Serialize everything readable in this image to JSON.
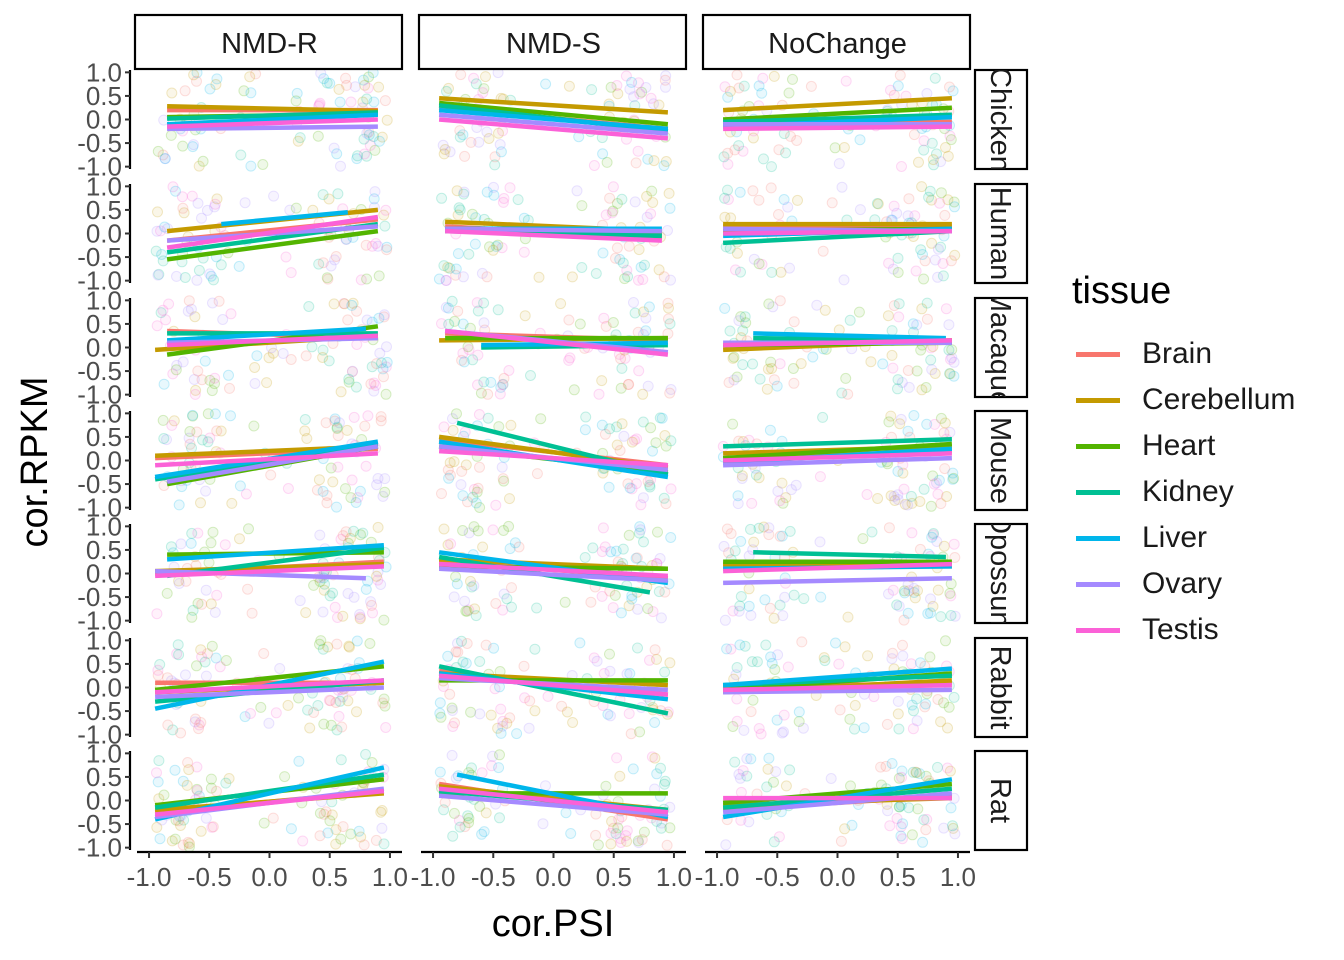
{
  "chart_data": {
    "type": "scatter",
    "facet_columns": [
      "NMD-R",
      "NMD-S",
      "NoChange"
    ],
    "facet_rows": [
      "Chicken",
      "Human",
      "Macaque",
      "Mouse",
      "Opossum",
      "Rabbit",
      "Rat"
    ],
    "xlabel": "cor.PSI",
    "ylabel": "cor.RPKM",
    "xlim": [
      -1.0,
      1.0
    ],
    "ylim": [
      -1.0,
      1.0
    ],
    "x_ticks": [
      "-1.0",
      "-0.5",
      "0.0",
      "0.5",
      "1.0"
    ],
    "y_ticks": [
      "-1.0",
      "-0.5",
      "0.0",
      "0.5",
      "1.0"
    ],
    "grid": false,
    "legend": {
      "title": "tissue",
      "position": "right",
      "entries": [
        "Brain",
        "Cerebellum",
        "Heart",
        "Kidney",
        "Liver",
        "Ovary",
        "Testis"
      ]
    },
    "colors": {
      "Brain": "#F8766D",
      "Cerebellum": "#C49A00",
      "Heart": "#53B400",
      "Kidney": "#00C094",
      "Liver": "#00B6EB",
      "Ovary": "#A58AFF",
      "Testis": "#FB61D7"
    },
    "trend_lines": {
      "Chicken": {
        "NMD-R": {
          "Brain": [
            -0.85,
            0.2,
            0.9,
            0.2
          ],
          "Cerebellum": [
            -0.85,
            0.28,
            0.9,
            0.18
          ],
          "Heart": [
            -0.85,
            0.05,
            0.9,
            0.12
          ],
          "Kidney": [
            -0.85,
            0.02,
            0.9,
            0.15
          ],
          "Liver": [
            -0.85,
            -0.1,
            0.9,
            0.1
          ],
          "Ovary": [
            -0.85,
            -0.2,
            0.9,
            -0.15
          ],
          "Testis": [
            -0.85,
            -0.15,
            0.9,
            0.0
          ]
        },
        "NMD-S": {
          "Brain": [
            -0.95,
            0.25,
            0.95,
            -0.2
          ],
          "Cerebellum": [
            -0.95,
            0.45,
            0.95,
            0.15
          ],
          "Heart": [
            -0.95,
            0.35,
            0.95,
            -0.1
          ],
          "Kidney": [
            -0.95,
            0.3,
            0.95,
            -0.25
          ],
          "Liver": [
            -0.95,
            0.2,
            0.95,
            -0.2
          ],
          "Ovary": [
            -0.95,
            0.1,
            0.95,
            -0.3
          ],
          "Testis": [
            -0.95,
            0.0,
            0.95,
            -0.4
          ]
        },
        "NoChange": {
          "Brain": [
            -0.95,
            -0.1,
            0.95,
            -0.05
          ],
          "Cerebellum": [
            -0.95,
            0.2,
            0.95,
            0.45
          ],
          "Heart": [
            -0.95,
            0.0,
            0.95,
            0.25
          ],
          "Kidney": [
            -0.95,
            -0.05,
            0.95,
            0.1
          ],
          "Liver": [
            -0.95,
            -0.15,
            0.95,
            0.05
          ],
          "Ovary": [
            -0.95,
            -0.1,
            0.95,
            -0.1
          ],
          "Testis": [
            -0.95,
            -0.2,
            0.95,
            -0.15
          ]
        }
      },
      "Human": {
        "NMD-R": {
          "Brain": [
            -0.85,
            -0.15,
            0.9,
            0.3
          ],
          "Cerebellum": [
            -0.85,
            0.05,
            0.9,
            0.5
          ],
          "Heart": [
            -0.85,
            -0.55,
            0.9,
            0.05
          ],
          "Kidney": [
            -0.85,
            -0.4,
            0.9,
            0.2
          ],
          "Liver": [
            -0.4,
            0.2,
            0.65,
            0.45
          ],
          "Ovary": [
            -0.85,
            -0.15,
            0.9,
            0.15
          ],
          "Testis": [
            -0.85,
            -0.3,
            0.9,
            0.35
          ]
        },
        "NMD-S": {
          "Brain": [
            -0.9,
            0.15,
            0.9,
            -0.1
          ],
          "Cerebellum": [
            -0.9,
            0.25,
            0.9,
            0.05
          ],
          "Heart": [
            -0.9,
            0.1,
            0.9,
            0.0
          ],
          "Kidney": [
            -0.9,
            0.05,
            0.9,
            -0.05
          ],
          "Liver": [
            -0.9,
            0.1,
            0.9,
            0.1
          ],
          "Ovary": [
            -0.9,
            0.1,
            0.9,
            0.05
          ],
          "Testis": [
            -0.9,
            0.05,
            0.9,
            -0.15
          ]
        },
        "NoChange": {
          "Brain": [
            -0.95,
            0.15,
            0.95,
            0.15
          ],
          "Cerebellum": [
            -0.95,
            0.2,
            0.95,
            0.2
          ],
          "Heart": [
            -0.95,
            0.05,
            0.95,
            0.1
          ],
          "Kidney": [
            -0.95,
            -0.2,
            0.95,
            0.05
          ],
          "Liver": [
            -0.95,
            -0.05,
            0.95,
            0.1
          ],
          "Ovary": [
            -0.95,
            0.1,
            0.95,
            0.05
          ],
          "Testis": [
            -0.95,
            0.0,
            0.95,
            0.05
          ]
        }
      },
      "Macaque": {
        "NMD-R": {
          "Brain": [
            -0.85,
            0.35,
            0.9,
            0.2
          ],
          "Cerebellum": [
            -0.95,
            -0.05,
            0.9,
            0.25
          ],
          "Heart": [
            -0.85,
            -0.15,
            0.9,
            0.45
          ],
          "Kidney": [
            -0.85,
            0.3,
            0.9,
            0.3
          ],
          "Liver": [
            -0.85,
            0.15,
            0.8,
            0.4
          ],
          "Ovary": [
            -0.85,
            0.1,
            0.9,
            0.2
          ],
          "Testis": [
            -0.85,
            0.05,
            0.9,
            0.25
          ]
        },
        "NMD-S": {
          "Brain": [
            -0.9,
            0.3,
            0.95,
            0.15
          ],
          "Cerebellum": [
            -0.95,
            0.15,
            0.95,
            0.2
          ],
          "Heart": [
            -0.9,
            0.2,
            0.95,
            0.2
          ],
          "Kidney": [
            -0.6,
            0.0,
            0.95,
            0.05
          ],
          "Liver": [
            -0.6,
            0.05,
            0.95,
            0.1
          ],
          "Ovary": [
            -0.9,
            0.35,
            0.95,
            -0.1
          ],
          "Testis": [
            -0.9,
            0.35,
            0.95,
            -0.15
          ]
        },
        "NoChange": {
          "Brain": [
            -0.95,
            0.05,
            0.95,
            0.15
          ],
          "Cerebellum": [
            -0.95,
            -0.05,
            0.95,
            0.15
          ],
          "Heart": [
            -0.95,
            0.05,
            0.95,
            0.1
          ],
          "Kidney": [
            -0.7,
            0.2,
            0.9,
            0.15
          ],
          "Liver": [
            -0.7,
            0.3,
            0.9,
            0.2
          ],
          "Ovary": [
            -0.95,
            0.1,
            0.95,
            0.1
          ],
          "Testis": [
            -0.95,
            0.05,
            0.95,
            0.15
          ]
        }
      },
      "Mouse": {
        "NMD-R": {
          "Brain": [
            -0.95,
            0.05,
            0.9,
            0.25
          ],
          "Cerebellum": [
            -0.95,
            0.1,
            0.9,
            0.3
          ],
          "Heart": [
            -0.85,
            -0.5,
            0.9,
            0.3
          ],
          "Kidney": [
            -0.95,
            -0.4,
            0.9,
            0.35
          ],
          "Liver": [
            -0.95,
            -0.35,
            0.9,
            0.4
          ],
          "Ovary": [
            -0.85,
            -0.45,
            0.9,
            0.3
          ],
          "Testis": [
            -0.95,
            -0.1,
            0.9,
            0.15
          ]
        },
        "NMD-S": {
          "Brain": [
            -0.95,
            0.45,
            0.95,
            -0.1
          ],
          "Cerebellum": [
            -0.95,
            0.5,
            0.95,
            -0.15
          ],
          "Heart": [
            -0.95,
            0.3,
            0.95,
            -0.25
          ],
          "Kidney": [
            -0.8,
            0.8,
            0.95,
            -0.3
          ],
          "Liver": [
            -0.95,
            0.4,
            0.95,
            -0.35
          ],
          "Ovary": [
            -0.95,
            0.3,
            0.95,
            -0.2
          ],
          "Testis": [
            -0.95,
            0.2,
            0.95,
            -0.1
          ]
        },
        "NoChange": {
          "Brain": [
            -0.95,
            0.05,
            0.95,
            0.2
          ],
          "Cerebellum": [
            -0.95,
            0.15,
            0.95,
            0.3
          ],
          "Heart": [
            -0.95,
            0.05,
            0.95,
            0.35
          ],
          "Kidney": [
            -0.95,
            0.3,
            0.95,
            0.45
          ],
          "Liver": [
            -0.95,
            -0.05,
            0.95,
            0.25
          ],
          "Ovary": [
            -0.95,
            -0.1,
            0.95,
            0.05
          ],
          "Testis": [
            -0.95,
            0.0,
            0.95,
            0.15
          ]
        }
      },
      "Opossum": {
        "NMD-R": {
          "Brain": [
            -0.95,
            0.0,
            0.95,
            0.25
          ],
          "Cerebellum": [
            -0.95,
            0.05,
            0.95,
            0.2
          ],
          "Heart": [
            -0.85,
            0.4,
            0.95,
            0.45
          ],
          "Kidney": [
            -0.85,
            -0.05,
            0.95,
            0.55
          ],
          "Liver": [
            -0.85,
            0.3,
            0.95,
            0.6
          ],
          "Ovary": [
            -0.95,
            0.05,
            0.8,
            -0.1
          ],
          "Testis": [
            -0.95,
            -0.05,
            0.95,
            0.15
          ]
        },
        "NMD-S": {
          "Brain": [
            -0.95,
            0.25,
            0.95,
            -0.1
          ],
          "Cerebellum": [
            -0.95,
            0.3,
            0.95,
            0.1
          ],
          "Heart": [
            -0.95,
            0.15,
            0.95,
            0.1
          ],
          "Kidney": [
            -0.95,
            0.35,
            0.8,
            -0.4
          ],
          "Liver": [
            -0.95,
            0.45,
            0.95,
            -0.2
          ],
          "Ovary": [
            -0.95,
            0.1,
            0.95,
            -0.15
          ],
          "Testis": [
            -0.95,
            0.2,
            0.95,
            -0.05
          ]
        },
        "NoChange": {
          "Brain": [
            -0.95,
            0.15,
            0.95,
            0.15
          ],
          "Cerebellum": [
            -0.95,
            0.2,
            0.95,
            0.2
          ],
          "Heart": [
            -0.95,
            0.25,
            0.95,
            0.25
          ],
          "Kidney": [
            -0.7,
            0.45,
            0.9,
            0.35
          ],
          "Liver": [
            -0.95,
            0.1,
            0.95,
            0.15
          ],
          "Ovary": [
            -0.95,
            -0.2,
            0.95,
            -0.1
          ],
          "Testis": [
            -0.95,
            0.05,
            0.95,
            0.2
          ]
        }
      },
      "Rabbit": {
        "NMD-R": {
          "Brain": [
            -0.95,
            0.1,
            0.95,
            0.1
          ],
          "Cerebellum": [
            -0.95,
            -0.1,
            0.95,
            0.1
          ],
          "Heart": [
            -0.95,
            -0.05,
            0.95,
            0.45
          ],
          "Kidney": [
            -0.95,
            -0.3,
            0.95,
            0.15
          ],
          "Liver": [
            -0.95,
            -0.45,
            0.95,
            0.55
          ],
          "Ovary": [
            -0.95,
            -0.2,
            0.95,
            0.0
          ],
          "Testis": [
            -0.95,
            -0.1,
            0.95,
            0.15
          ]
        },
        "NMD-S": {
          "Brain": [
            -0.95,
            0.35,
            0.95,
            -0.15
          ],
          "Cerebellum": [
            -0.95,
            0.3,
            0.95,
            0.05
          ],
          "Heart": [
            -0.95,
            0.15,
            0.95,
            0.15
          ],
          "Kidney": [
            -0.95,
            0.45,
            0.95,
            -0.55
          ],
          "Liver": [
            -0.95,
            0.3,
            0.95,
            -0.25
          ],
          "Ovary": [
            -0.95,
            0.2,
            0.95,
            -0.05
          ],
          "Testis": [
            -0.95,
            0.25,
            0.95,
            -0.15
          ]
        },
        "NoChange": {
          "Brain": [
            -0.95,
            0.0,
            0.95,
            0.1
          ],
          "Cerebellum": [
            -0.95,
            -0.1,
            0.95,
            0.15
          ],
          "Heart": [
            -0.95,
            -0.05,
            0.95,
            0.3
          ],
          "Kidney": [
            -0.95,
            0.05,
            0.95,
            0.25
          ],
          "Liver": [
            -0.95,
            0.05,
            0.95,
            0.4
          ],
          "Ovary": [
            -0.95,
            -0.1,
            0.95,
            -0.05
          ],
          "Testis": [
            -0.95,
            -0.05,
            0.95,
            0.05
          ]
        }
      },
      "Rat": {
        "NMD-R": {
          "Brain": [
            -0.95,
            -0.25,
            0.95,
            0.2
          ],
          "Cerebellum": [
            -0.95,
            -0.2,
            0.95,
            0.15
          ],
          "Heart": [
            -0.95,
            -0.1,
            0.95,
            0.45
          ],
          "Kidney": [
            -0.95,
            -0.15,
            0.95,
            0.55
          ],
          "Liver": [
            -0.95,
            -0.4,
            0.95,
            0.7
          ],
          "Ovary": [
            -0.95,
            -0.35,
            0.95,
            0.25
          ],
          "Testis": [
            -0.95,
            -0.3,
            0.95,
            0.2
          ]
        },
        "NMD-S": {
          "Brain": [
            -0.95,
            0.35,
            0.95,
            -0.4
          ],
          "Cerebellum": [
            -0.95,
            0.3,
            0.95,
            -0.2
          ],
          "Heart": [
            -0.95,
            0.15,
            0.95,
            0.15
          ],
          "Kidney": [
            -0.95,
            0.2,
            0.95,
            -0.2
          ],
          "Liver": [
            -0.8,
            0.55,
            0.95,
            -0.35
          ],
          "Ovary": [
            -0.95,
            0.1,
            0.95,
            -0.3
          ],
          "Testis": [
            -0.95,
            0.25,
            0.95,
            -0.25
          ]
        },
        "NoChange": {
          "Brain": [
            -0.95,
            -0.2,
            0.95,
            0.1
          ],
          "Cerebellum": [
            -0.95,
            -0.1,
            0.95,
            0.05
          ],
          "Heart": [
            -0.95,
            -0.05,
            0.95,
            0.35
          ],
          "Kidney": [
            -0.95,
            -0.15,
            0.95,
            0.25
          ],
          "Liver": [
            -0.95,
            -0.35,
            0.95,
            0.45
          ],
          "Ovary": [
            -0.95,
            -0.25,
            0.95,
            0.15
          ],
          "Testis": [
            -0.95,
            0.05,
            0.95,
            0.05
          ]
        }
      }
    }
  }
}
